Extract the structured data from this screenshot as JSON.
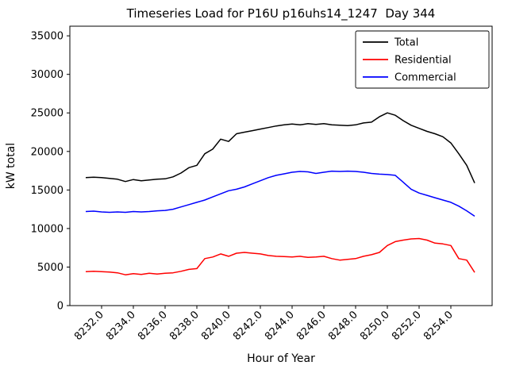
{
  "chart_data": {
    "type": "line",
    "title": "Timeseries Load for P16U p16uhs14_1247  Day 344",
    "xlabel": "Hour of Year",
    "ylabel": "kW total",
    "xlim": [
      8230.0,
      8256.6
    ],
    "ylim": [
      0,
      36250
    ],
    "grid": false,
    "legend_position": "upper right",
    "xticks": [
      8232,
      8234,
      8236,
      8238,
      8240,
      8242,
      8244,
      8246,
      8248,
      8250,
      8252,
      8254
    ],
    "xtick_labels": [
      "8232.0",
      "8234.0",
      "8236.0",
      "8238.0",
      "8240.0",
      "8242.0",
      "8244.0",
      "8246.0",
      "8248.0",
      "8250.0",
      "8252.0",
      "8254.0"
    ],
    "yticks": [
      0,
      5000,
      10000,
      15000,
      20000,
      25000,
      30000,
      35000
    ],
    "ytick_labels": [
      "0",
      "5000",
      "10000",
      "15000",
      "20000",
      "25000",
      "30000",
      "35000"
    ],
    "x": [
      8231.0,
      8231.5,
      8232.0,
      8232.5,
      8233.0,
      8233.5,
      8234.0,
      8234.5,
      8235.0,
      8235.5,
      8236.0,
      8236.5,
      8237.0,
      8237.5,
      8238.0,
      8238.5,
      8239.0,
      8239.5,
      8240.0,
      8240.5,
      8241.0,
      8241.5,
      8242.0,
      8242.5,
      8243.0,
      8243.5,
      8244.0,
      8244.5,
      8245.0,
      8245.5,
      8246.0,
      8246.5,
      8247.0,
      8247.5,
      8248.0,
      8248.5,
      8249.0,
      8249.5,
      8250.0,
      8250.5,
      8251.0,
      8251.5,
      8252.0,
      8252.5,
      8253.0,
      8253.5,
      8254.0,
      8254.5,
      8255.0,
      8255.5
    ],
    "series": [
      {
        "name": "Total",
        "color": "#000000",
        "values": [
          16600,
          16650,
          16600,
          16500,
          16400,
          16100,
          16350,
          16200,
          16300,
          16400,
          16450,
          16700,
          17200,
          17900,
          18200,
          19700,
          20300,
          21600,
          21300,
          22300,
          22500,
          22700,
          22900,
          23100,
          23300,
          23450,
          23550,
          23450,
          23600,
          23500,
          23600,
          23450,
          23400,
          23350,
          23450,
          23700,
          23800,
          24500,
          25000,
          24700,
          24000,
          23400,
          23000,
          22600,
          22300,
          21900,
          21100,
          19700,
          18200,
          15900
        ]
      },
      {
        "name": "Residential",
        "color": "#ff0000",
        "values": [
          4400,
          4450,
          4400,
          4350,
          4250,
          4000,
          4150,
          4050,
          4200,
          4100,
          4200,
          4250,
          4450,
          4700,
          4800,
          6100,
          6300,
          6700,
          6400,
          6800,
          6900,
          6800,
          6700,
          6500,
          6400,
          6350,
          6300,
          6400,
          6250,
          6300,
          6400,
          6100,
          5900,
          6000,
          6100,
          6400,
          6600,
          6900,
          7800,
          8300,
          8500,
          8650,
          8700,
          8500,
          8100,
          8000,
          7800,
          6100,
          5900,
          4300
        ]
      },
      {
        "name": "Commercial",
        "color": "#0000ff",
        "values": [
          12200,
          12250,
          12150,
          12100,
          12150,
          12100,
          12200,
          12150,
          12200,
          12300,
          12350,
          12500,
          12800,
          13100,
          13400,
          13700,
          14100,
          14500,
          14900,
          15100,
          15400,
          15800,
          16200,
          16600,
          16900,
          17100,
          17300,
          17400,
          17350,
          17150,
          17300,
          17450,
          17400,
          17450,
          17400,
          17300,
          17150,
          17050,
          17000,
          16900,
          16000,
          15100,
          14600,
          14300,
          14000,
          13700,
          13400,
          12900,
          12300,
          11600
        ]
      }
    ]
  }
}
